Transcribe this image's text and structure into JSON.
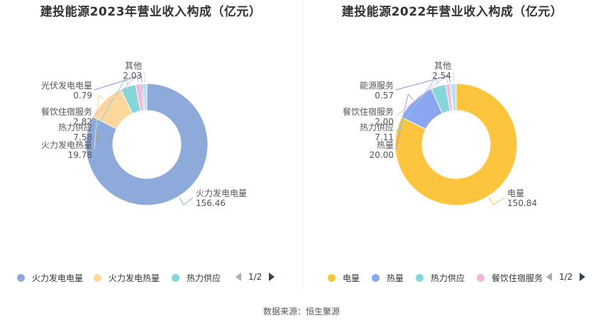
{
  "source": "数据来源：恒生聚源",
  "chart_data": [
    {
      "type": "pie",
      "title": "建投能源2023年营业收入构成（亿元）",
      "slices": [
        {
          "name": "火力发电电量",
          "value": 156.46,
          "value_label": "156.46",
          "color": "#8eaadb"
        },
        {
          "name": "火力发电热量",
          "value": 19.78,
          "value_label": "19.78",
          "color": "#fdd79b"
        },
        {
          "name": "热力供应",
          "value": 7.58,
          "value_label": "7.58",
          "color": "#84d6d8"
        },
        {
          "name": "餐饮住宿服务",
          "value": 2.82,
          "value_label": "2.82",
          "color": "#f2b8d8"
        },
        {
          "name": "光伏发电电量",
          "value": 0.79,
          "value_label": "0.79",
          "color": "#9d8be0"
        },
        {
          "name": "其他",
          "value": 2.03,
          "value_label": "2.03",
          "color": "#b7e0f5"
        }
      ],
      "legend": {
        "items": [
          "火力发电电量",
          "火力发电热量",
          "热力供应"
        ],
        "page": "1/2"
      }
    },
    {
      "type": "pie",
      "title": "建投能源2022年营业收入构成（亿元）",
      "slices": [
        {
          "name": "电量",
          "value": 150.84,
          "value_label": "150.84",
          "color": "#fdc53d"
        },
        {
          "name": "热量",
          "value": 20.0,
          "value_label": "20.00",
          "color": "#8aa6f0"
        },
        {
          "name": "热力供应",
          "value": 7.11,
          "value_label": "7.11",
          "color": "#84d6d8"
        },
        {
          "name": "餐饮住宿服务",
          "value": 2.0,
          "value_label": "2.00",
          "color": "#f2b8d8"
        },
        {
          "name": "能源服务",
          "value": 0.57,
          "value_label": "0.57",
          "color": "#9d8be0"
        },
        {
          "name": "其他",
          "value": 2.54,
          "value_label": "2.54",
          "color": "#b7e0f5"
        }
      ],
      "legend": {
        "items": [
          "电量",
          "热量",
          "热力供应",
          "餐饮住宿服务"
        ],
        "page": "1/2"
      }
    }
  ]
}
